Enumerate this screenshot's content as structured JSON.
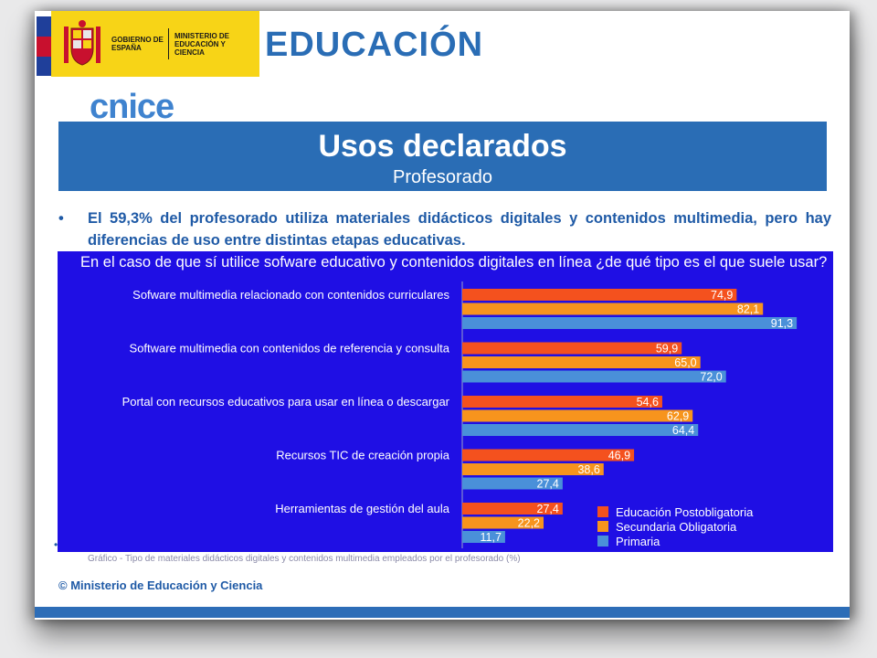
{
  "header": {
    "gov_text": "GOBIERNO DE ESPAÑA",
    "ministry_text": "MINISTERIO DE EDUCACIÓN Y CIENCIA",
    "brand": "EDUCACIÓN",
    "cnice": "cnice"
  },
  "title": {
    "main": "Usos declarados",
    "sub": "Profesorado"
  },
  "bullet": "El 59,3% del profesorado utiliza materiales didácticos digitales y contenidos multimedia, pero hay diferencias de uso entre distintas etapas educativas.",
  "chart_data": {
    "type": "bar",
    "orientation": "horizontal",
    "title": "En el caso de que sí utilice sofware educativo y contenidos digitales en línea ¿de qué tipo es el que suele usar?",
    "categories": [
      "Sofware multimedia relacionado con contenidos curriculares",
      "Software multimedia con contenidos de referencia y consulta",
      "Portal con recursos educativos para usar en línea o descargar",
      "Recursos TIC de creación propia",
      "Herramientas de gestión del aula"
    ],
    "series": [
      {
        "name": "Educación Postobligatoria",
        "color": "#f4511e",
        "values": [
          74.9,
          59.9,
          54.6,
          46.9,
          27.4
        ],
        "labels": [
          "74,9",
          "59,9",
          "54,6",
          "46,9",
          "27,4"
        ]
      },
      {
        "name": "Secundaria Obligatoria",
        "color": "#f7941d",
        "values": [
          82.1,
          65.0,
          62.9,
          38.6,
          22.2
        ],
        "labels": [
          "82,1",
          "65,0",
          "62,9",
          "38,6",
          "22,2"
        ]
      },
      {
        "name": "Primaria",
        "color": "#4a90d9",
        "values": [
          91.3,
          72.0,
          64.4,
          27.4,
          11.7
        ],
        "labels": [
          "91,3",
          "72,0",
          "64,4",
          "27,4",
          "11,7"
        ]
      }
    ],
    "xlim": [
      0,
      100
    ],
    "legend": "bottom-right",
    "grid": false
  },
  "caption": "Gráfico - Tipo de materiales didácticos digitales y contenidos multimedia empleados por el profesorado (%)",
  "copyright": "© Ministerio de Educación y Ciencia",
  "colors": {
    "brand_blue": "#2a6db5",
    "chart_bg": "#1f0fe4",
    "gov_yellow": "#f7d417"
  }
}
